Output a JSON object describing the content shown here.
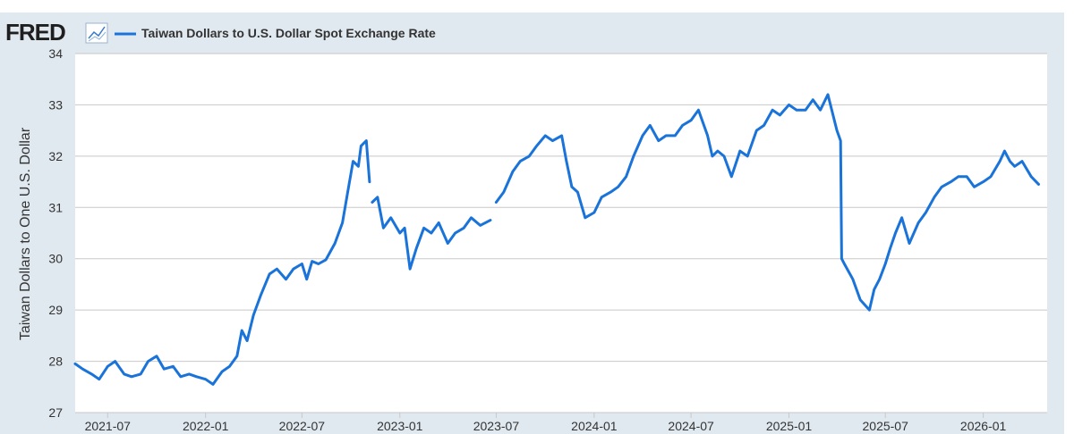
{
  "logo": {
    "text": "FRED",
    "icon": "trend-chart-icon"
  },
  "legend": {
    "label": "Taiwan Dollars to U.S. Dollar Spot Exchange Rate"
  },
  "colors": {
    "series": "#1a73d9",
    "frame": "#e1e9f0",
    "grid": "#c8c8c8"
  },
  "chart_data": {
    "type": "line",
    "title": "",
    "xlabel": "",
    "ylabel": "Taiwan Dollars to One U.S. Dollar",
    "ylim": [
      27,
      34
    ],
    "yticks": [
      27,
      28,
      29,
      30,
      31,
      32,
      33,
      34
    ],
    "xlim": [
      "2021-05-01",
      "2026-05-01"
    ],
    "xticks": [
      "2021-07",
      "2022-01",
      "2022-07",
      "2023-01",
      "2023-07",
      "2024-01",
      "2024-07",
      "2025-01",
      "2025-07",
      "2026-01"
    ],
    "grid": true,
    "legend_position": "top-left",
    "series": [
      {
        "name": "Taiwan Dollars to U.S. Dollar Spot Exchange Rate",
        "segments": [
          {
            "x": [
              "2021-05-01",
              "2021-05-15",
              "2021-06-01",
              "2021-06-15",
              "2021-07-01",
              "2021-07-15",
              "2021-08-01",
              "2021-08-15",
              "2021-09-01",
              "2021-09-15",
              "2021-10-01",
              "2021-10-15",
              "2021-11-01",
              "2021-11-15",
              "2021-12-01",
              "2021-12-15",
              "2022-01-01",
              "2022-01-15",
              "2022-02-01",
              "2022-02-15",
              "2022-03-01",
              "2022-03-10",
              "2022-03-20",
              "2022-04-01",
              "2022-04-15",
              "2022-05-01",
              "2022-05-15",
              "2022-06-01",
              "2022-06-15",
              "2022-07-01",
              "2022-07-10",
              "2022-07-20",
              "2022-08-01",
              "2022-08-15",
              "2022-09-01",
              "2022-09-15",
              "2022-09-25",
              "2022-10-05",
              "2022-10-15",
              "2022-10-20",
              "2022-10-30",
              "2022-11-05"
            ],
            "y": [
              27.95,
              27.85,
              27.75,
              27.65,
              27.9,
              28.0,
              27.75,
              27.7,
              27.75,
              28.0,
              28.1,
              27.85,
              27.9,
              27.7,
              27.75,
              27.7,
              27.65,
              27.55,
              27.8,
              27.9,
              28.1,
              28.6,
              28.4,
              28.9,
              29.3,
              29.7,
              29.8,
              29.6,
              29.8,
              29.9,
              29.6,
              29.95,
              29.9,
              29.98,
              30.3,
              30.7,
              31.3,
              31.9,
              31.8,
              32.2,
              32.3,
              31.5
            ]
          },
          {
            "x": [
              "2022-11-10",
              "2022-11-20",
              "2022-12-01",
              "2022-12-15",
              "2023-01-01",
              "2023-01-10",
              "2023-01-20",
              "2023-02-01",
              "2023-02-15",
              "2023-03-01",
              "2023-03-15",
              "2023-04-01",
              "2023-04-15",
              "2023-05-01",
              "2023-05-15",
              "2023-06-01",
              "2023-06-20"
            ],
            "y": [
              31.1,
              31.2,
              30.6,
              30.8,
              30.5,
              30.6,
              29.8,
              30.2,
              30.6,
              30.5,
              30.7,
              30.3,
              30.5,
              30.6,
              30.8,
              30.65,
              30.75
            ]
          },
          {
            "x": [
              "2023-07-01",
              "2023-07-15",
              "2023-08-01",
              "2023-08-15",
              "2023-09-01",
              "2023-09-15",
              "2023-10-01",
              "2023-10-15",
              "2023-11-01",
              "2023-11-10",
              "2023-11-20",
              "2023-12-01",
              "2023-12-15",
              "2024-01-01",
              "2024-01-15",
              "2024-02-01",
              "2024-02-15",
              "2024-03-01",
              "2024-03-15",
              "2024-04-01",
              "2024-04-15",
              "2024-05-01",
              "2024-05-15",
              "2024-06-01",
              "2024-06-15",
              "2024-07-01",
              "2024-07-15",
              "2024-08-01",
              "2024-08-10",
              "2024-08-20",
              "2024-09-01",
              "2024-09-15",
              "2024-10-01",
              "2024-10-15",
              "2024-11-01",
              "2024-11-15",
              "2024-12-01",
              "2024-12-15",
              "2025-01-01",
              "2025-01-15",
              "2025-02-01",
              "2025-02-15",
              "2025-03-01",
              "2025-03-15",
              "2025-04-01",
              "2025-04-08",
              "2025-04-10",
              "2025-04-15",
              "2025-05-01",
              "2025-05-15",
              "2025-06-01",
              "2025-06-10",
              "2025-06-20",
              "2025-07-01",
              "2025-07-10",
              "2025-07-20",
              "2025-08-01",
              "2025-08-15",
              "2025-09-01",
              "2025-09-15",
              "2025-10-01",
              "2025-10-15",
              "2025-11-01",
              "2025-11-15",
              "2025-12-01",
              "2025-12-15",
              "2026-01-01",
              "2026-01-15",
              "2026-02-01",
              "2026-02-10",
              "2026-02-20",
              "2026-03-01",
              "2026-03-15",
              "2026-04-01",
              "2026-04-15"
            ],
            "y": [
              31.1,
              31.3,
              31.7,
              31.9,
              32.0,
              32.2,
              32.4,
              32.3,
              32.4,
              31.9,
              31.4,
              31.3,
              30.8,
              30.9,
              31.2,
              31.3,
              31.4,
              31.6,
              32.0,
              32.4,
              32.6,
              32.3,
              32.4,
              32.4,
              32.6,
              32.7,
              32.9,
              32.4,
              32.0,
              32.1,
              32.0,
              31.6,
              32.1,
              32.0,
              32.5,
              32.6,
              32.9,
              32.8,
              33.0,
              32.9,
              32.9,
              33.1,
              32.9,
              33.2,
              32.5,
              32.3,
              30.0,
              29.9,
              29.6,
              29.2,
              29.0,
              29.4,
              29.6,
              29.9,
              30.2,
              30.5,
              30.8,
              30.3,
              30.7,
              30.9,
              31.2,
              31.4,
              31.5,
              31.6,
              31.6,
              31.4,
              31.5,
              31.6,
              31.9,
              32.1,
              31.9,
              31.8,
              31.9,
              31.6,
              31.45
            ]
          }
        ]
      }
    ]
  }
}
